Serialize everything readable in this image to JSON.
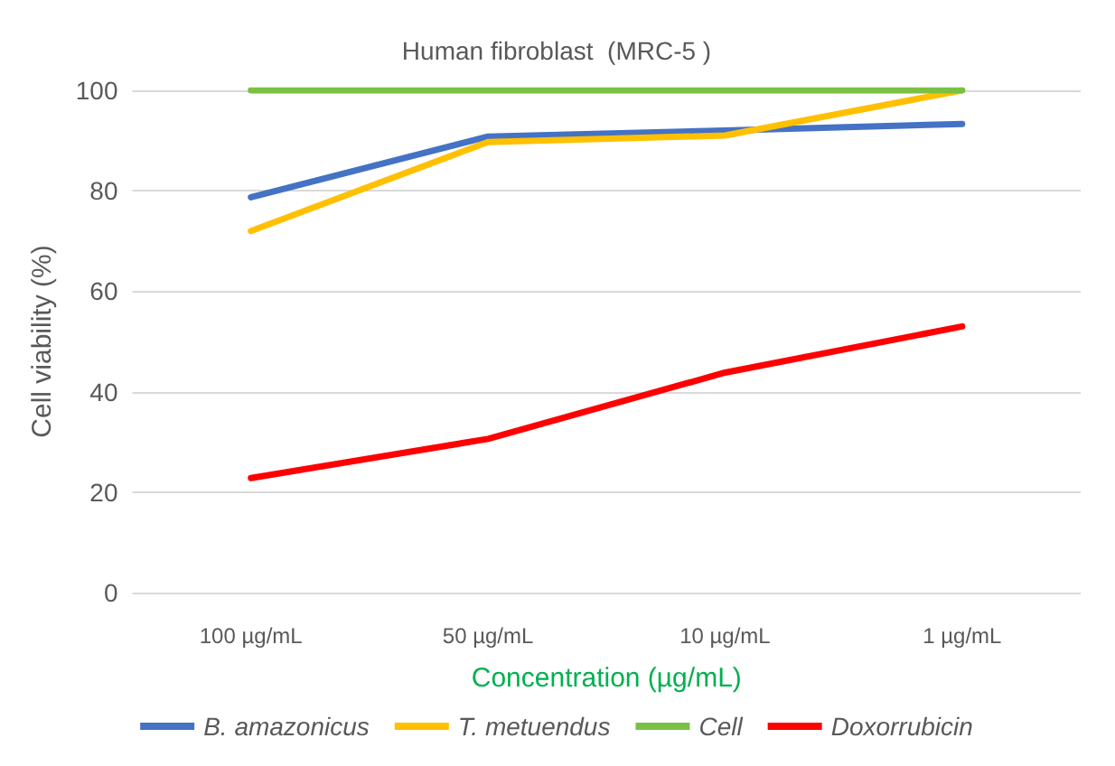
{
  "chart_data": {
    "type": "line",
    "title": "Human fibroblast  (MRC-5 )",
    "xlabel": "Concentration (µg/mL)",
    "ylabel": "Cell viability (%)",
    "categories": [
      "100 µg/mL",
      "50 µg/mL",
      "10 µg/mL",
      "1 µg/mL"
    ],
    "series": [
      {
        "name": "B. amazonicus",
        "color": "#4472c4",
        "values": [
          78.7,
          90.8,
          92,
          93.3
        ]
      },
      {
        "name": "T. metuendus",
        "color": "#ffc000",
        "values": [
          72,
          89.7,
          91,
          100
        ]
      },
      {
        "name": "Cell",
        "color": "#7ac143",
        "values": [
          100,
          100,
          100,
          100
        ]
      },
      {
        "name": "Doxorrubicin",
        "color": "#ff0000",
        "values": [
          22.8,
          30.6,
          43.8,
          53
        ]
      }
    ],
    "ylim": [
      0,
      100
    ],
    "yticks": [
      0,
      20,
      40,
      60,
      80,
      100
    ],
    "grid": "y",
    "legend": "bottom",
    "marker": "none",
    "line_style": "solid"
  }
}
